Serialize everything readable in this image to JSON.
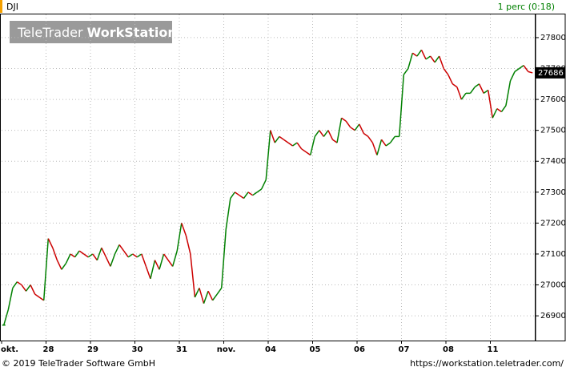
{
  "header": {
    "symbol": "DJI",
    "interval": "1 perc (0:18)"
  },
  "watermark": {
    "brand": "TeleTrader",
    "product": "WorkStation"
  },
  "footer": {
    "copyright": "© 2019 TeleTrader Software GmbH",
    "url": "https://workstation.teletrader.com/"
  },
  "chart_data": {
    "type": "line",
    "up_color": "#008000",
    "down_color": "#cc0000",
    "grid": true,
    "categories": [
      "okt.",
      null,
      null,
      null,
      null,
      null,
      null,
      null,
      null,
      null,
      "28",
      null,
      null,
      null,
      null,
      null,
      null,
      null,
      null,
      null,
      "29",
      null,
      null,
      null,
      null,
      null,
      null,
      null,
      null,
      null,
      "30",
      null,
      null,
      null,
      null,
      null,
      null,
      null,
      null,
      null,
      "31",
      null,
      null,
      null,
      null,
      null,
      null,
      null,
      null,
      null,
      "nov.",
      null,
      null,
      null,
      null,
      null,
      null,
      null,
      null,
      null,
      "04",
      null,
      null,
      null,
      null,
      null,
      null,
      null,
      null,
      null,
      "05",
      null,
      null,
      null,
      null,
      null,
      null,
      null,
      null,
      null,
      "06",
      null,
      null,
      null,
      null,
      null,
      null,
      null,
      null,
      null,
      "07",
      null,
      null,
      null,
      null,
      null,
      null,
      null,
      null,
      null,
      "08",
      null,
      null,
      null,
      null,
      null,
      null,
      null,
      null,
      null,
      "11",
      null,
      null,
      null,
      null,
      null,
      null,
      null,
      null,
      null
    ],
    "values": [
      26870,
      26920,
      26990,
      27010,
      27000,
      26980,
      27000,
      26970,
      26960,
      26950,
      27150,
      27120,
      27080,
      27050,
      27070,
      27100,
      27090,
      27110,
      27100,
      27090,
      27100,
      27080,
      27120,
      27090,
      27060,
      27100,
      27130,
      27110,
      27090,
      27100,
      27090,
      27100,
      27060,
      27020,
      27080,
      27050,
      27100,
      27080,
      27060,
      27110,
      27200,
      27160,
      27100,
      26960,
      26990,
      26940,
      26980,
      26950,
      26970,
      26990,
      27180,
      27280,
      27300,
      27290,
      27280,
      27300,
      27290,
      27300,
      27310,
      27340,
      27500,
      27460,
      27480,
      27470,
      27460,
      27450,
      27460,
      27440,
      27430,
      27420,
      27480,
      27500,
      27480,
      27500,
      27470,
      27460,
      27540,
      27530,
      27510,
      27500,
      27520,
      27490,
      27480,
      27460,
      27420,
      27470,
      27450,
      27460,
      27480,
      27480,
      27680,
      27700,
      27750,
      27740,
      27760,
      27730,
      27740,
      27720,
      27740,
      27700,
      27680,
      27650,
      27640,
      27600,
      27620,
      27620,
      27640,
      27650,
      27620,
      27630,
      27540,
      27570,
      27560,
      27580,
      27660,
      27690,
      27700,
      27710,
      27690,
      27686
    ],
    "last_price": 27686,
    "ylim": [
      26820,
      27875
    ],
    "yticks": [
      26900,
      27000,
      27100,
      27200,
      27300,
      27400,
      27500,
      27600,
      27700,
      27800
    ]
  }
}
